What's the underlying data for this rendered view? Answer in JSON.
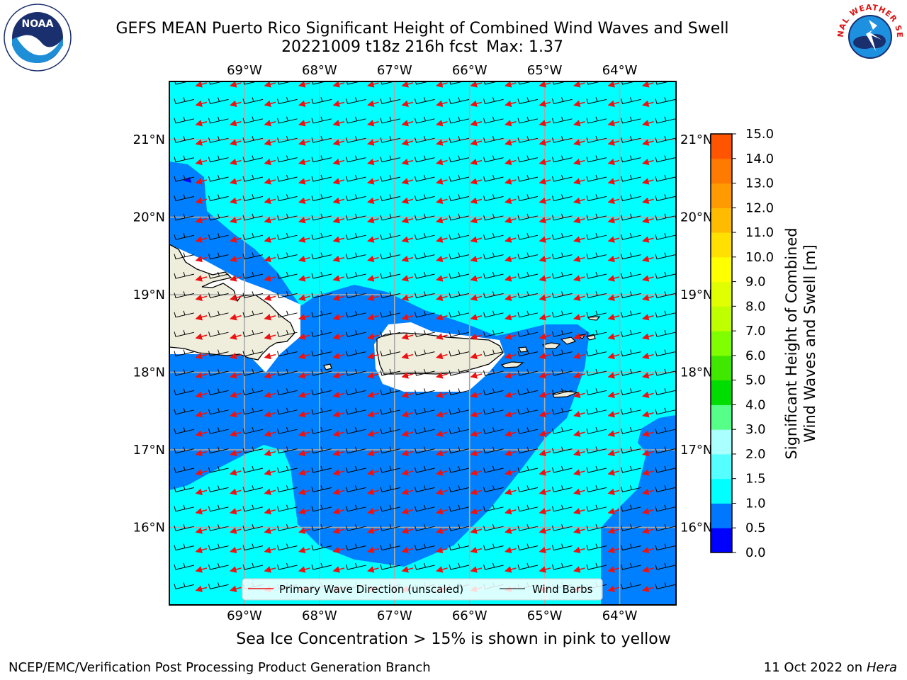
{
  "header": {
    "title": "GEFS MEAN Puerto Rico Significant Height of Combined Wind Waves and Swell",
    "cycle": "20221009 t18z 216h fcst",
    "max": "Max: 1.37"
  },
  "logos": {
    "left": "NOAA",
    "right": "NATIONAL WEATHER SERVICE"
  },
  "map": {
    "lon_ticks": [
      "69°W",
      "68°W",
      "67°W",
      "66°W",
      "65°W",
      "64°W"
    ],
    "lat_ticks": [
      "21°N",
      "20°N",
      "19°N",
      "18°N",
      "17°N",
      "16°N"
    ],
    "lon_range": [
      -70.0,
      -63.25
    ],
    "lat_range": [
      15.0,
      21.75
    ]
  },
  "legend": {
    "wave_direction": "Primary Wave Direction (unscaled)",
    "wind_barbs": "Wind Barbs"
  },
  "colorbar": {
    "label_line1": "Significant Height of Combined",
    "label_line2": "Wind Waves and Swell [m]",
    "ticks": [
      "15.0",
      "14.0",
      "13.0",
      "12.0",
      "11.0",
      "10.0",
      "9.0",
      "8.0",
      "7.0",
      "6.0",
      "5.0",
      "4.0",
      "3.0",
      "2.0",
      "1.5",
      "1.0",
      "0.5",
      "0.0"
    ],
    "colors": [
      "#ff0000",
      "#ff3300",
      "#ff5500",
      "#ff7a00",
      "#ff9a00",
      "#ffbb00",
      "#ffe000",
      "#ffff00",
      "#e0ff00",
      "#c0ff00",
      "#80ff00",
      "#40e800",
      "#00dd00",
      "#55ff88",
      "#aaffff",
      "#55ffff",
      "#00ffff",
      "#0077ff",
      "#0000ff"
    ],
    "band_bottom_colors": [
      "#0000ff",
      "#0077ff",
      "#00ffff",
      "#55ffff",
      "#aaffff",
      "#55ff88",
      "#00dd00",
      "#40e800",
      "#80ff00",
      "#c0ff00",
      "#e0ff00",
      "#ffff00",
      "#ffe000",
      "#ffbb00",
      "#ff9a00",
      "#ff7a00",
      "#ff5500",
      "#ff3300",
      "#ff0000"
    ],
    "cyan_fill": "#00ffff",
    "blue_fill": "#0080ff"
  },
  "caption": "Sea Ice Concentration > 15% is shown in pink to yellow",
  "footer": {
    "left": "NCEP/EMC/Verification Post Processing Product Generation Branch",
    "date": "11 Oct 2022 on ",
    "machine": "Hera"
  }
}
